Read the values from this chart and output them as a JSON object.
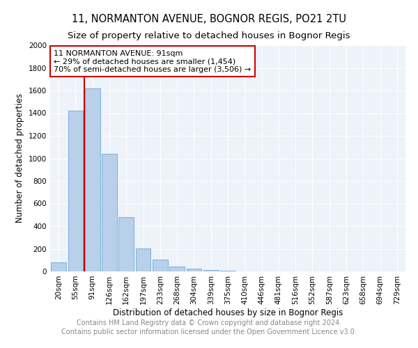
{
  "title": "11, NORMANTON AVENUE, BOGNOR REGIS, PO21 2TU",
  "subtitle": "Size of property relative to detached houses in Bognor Regis",
  "xlabel": "Distribution of detached houses by size in Bognor Regis",
  "ylabel": "Number of detached properties",
  "bins": [
    "20sqm",
    "55sqm",
    "91sqm",
    "126sqm",
    "162sqm",
    "197sqm",
    "233sqm",
    "268sqm",
    "304sqm",
    "339sqm",
    "375sqm",
    "410sqm",
    "446sqm",
    "481sqm",
    "516sqm",
    "552sqm",
    "587sqm",
    "623sqm",
    "658sqm",
    "694sqm",
    "729sqm"
  ],
  "values": [
    80,
    1420,
    1620,
    1040,
    480,
    205,
    107,
    42,
    22,
    15,
    8,
    0,
    0,
    0,
    0,
    0,
    0,
    0,
    0,
    0,
    0
  ],
  "bar_color": "#b8d0ea",
  "bar_edge_color": "#6aaad4",
  "red_line_x": 1.5,
  "annotation_line1": "11 NORMANTON AVENUE: 91sqm",
  "annotation_line2": "← 29% of detached houses are smaller (1,454)",
  "annotation_line3": "70% of semi-detached houses are larger (3,506) →",
  "annotation_box_color": "#ffffff",
  "annotation_box_edge_color": "#cc0000",
  "red_line_color": "#cc0000",
  "ylim": [
    0,
    2000
  ],
  "yticks": [
    0,
    200,
    400,
    600,
    800,
    1000,
    1200,
    1400,
    1600,
    1800,
    2000
  ],
  "footer_line1": "Contains HM Land Registry data © Crown copyright and database right 2024.",
  "footer_line2": "Contains public sector information licensed under the Open Government Licence v3.0.",
  "background_color": "#eef2f9",
  "grid_color": "#ffffff",
  "title_fontsize": 10.5,
  "subtitle_fontsize": 9.5,
  "axis_label_fontsize": 8.5,
  "tick_fontsize": 7.5,
  "annotation_fontsize": 8,
  "footer_fontsize": 7
}
